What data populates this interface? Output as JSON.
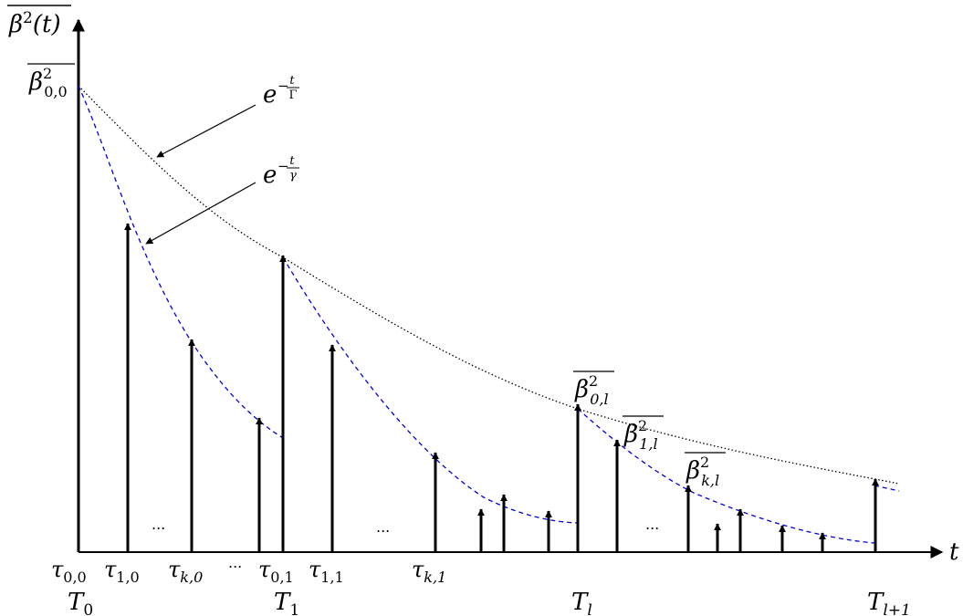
{
  "figure": {
    "y_axis_label": {
      "base": "β",
      "sup": "2",
      "rest": "(t)"
    },
    "x_axis_label": "t",
    "curve_labels": {
      "outer": {
        "base": "e",
        "num": "t",
        "den": "Γ",
        "sign": "−"
      },
      "inner": {
        "base": "e",
        "num": "t",
        "den": "γ",
        "sign": "−"
      }
    },
    "peak_labels": [
      {
        "base": "β",
        "sup": "2",
        "sub": "0,0"
      },
      {
        "base": "β",
        "sup": "2",
        "sub": "0,l"
      },
      {
        "base": "β",
        "sup": "2",
        "sub": "1,l"
      },
      {
        "base": "β",
        "sup": "2",
        "sub": "k,l"
      }
    ],
    "tau_labels": [
      {
        "base": "τ",
        "sub": "0,0"
      },
      {
        "base": "τ",
        "sub": "1,0"
      },
      {
        "base": "τ",
        "sub": "k,0"
      },
      {
        "base": "τ",
        "sub": "0,1"
      },
      {
        "base": "τ",
        "sub": "1,1"
      },
      {
        "base": "τ",
        "sub": "k,1"
      }
    ],
    "period_labels": [
      {
        "base": "T",
        "sub": "0"
      },
      {
        "base": "T",
        "sub": "1"
      },
      {
        "base": "T",
        "sub": "l"
      },
      {
        "base": "T",
        "sub": "l+1"
      }
    ],
    "ellipsis": "...",
    "colors": {
      "inner_curve": "#0000dd",
      "outer_curve": "#000000",
      "arrows": "#000000"
    }
  }
}
